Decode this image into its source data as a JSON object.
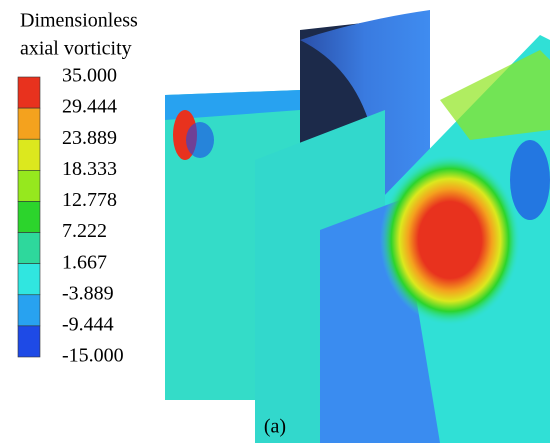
{
  "legend": {
    "title": [
      "Dimensionless",
      "axial vorticity"
    ],
    "ticks": [
      "35.000",
      "29.444",
      "23.889",
      "18.333",
      "12.778",
      "7.222",
      "1.667",
      "-3.889",
      "-9.444",
      "-15.000"
    ],
    "colors": [
      "#e8321e",
      "#f4a21e",
      "#dce81e",
      "#96e81e",
      "#2cd42c",
      "#2ed89c",
      "#30e6e0",
      "#28a2f0",
      "#1e4ae6"
    ]
  },
  "caption": "(a)"
}
